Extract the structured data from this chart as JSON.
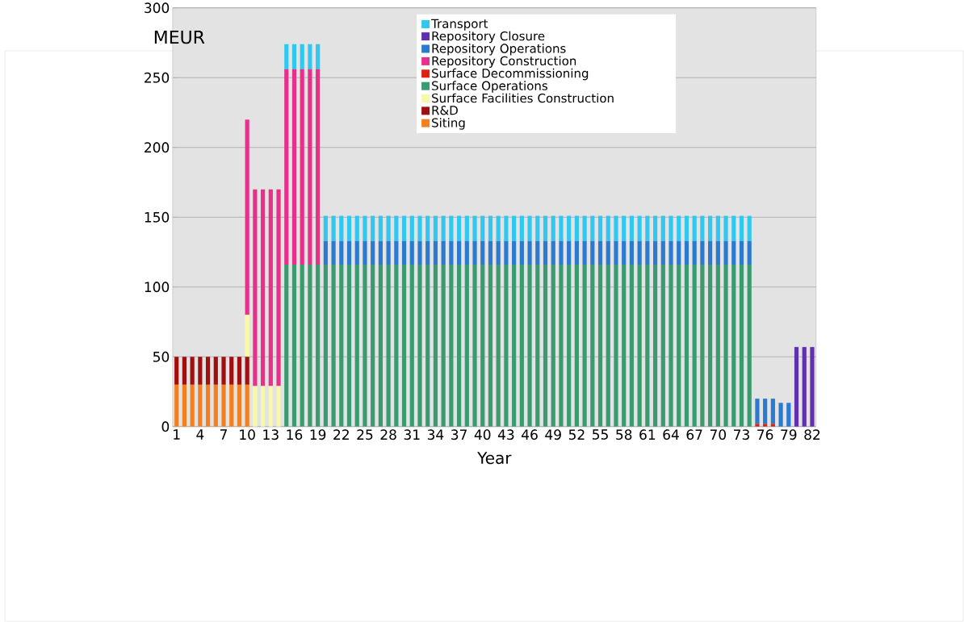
{
  "chart_data": {
    "type": "bar",
    "stacked": true,
    "xlabel": "Year",
    "ylabel": "MEUR",
    "categories": [
      "1",
      null,
      null,
      "4",
      null,
      null,
      "7",
      null,
      null,
      "10",
      null,
      null,
      "13",
      null,
      null,
      "16",
      null,
      null,
      "19",
      null,
      null,
      "22",
      null,
      null,
      "25",
      null,
      null,
      "28",
      null,
      null,
      "31",
      null,
      null,
      "34",
      null,
      null,
      "37",
      null,
      null,
      "40",
      null,
      null,
      "43",
      null,
      null,
      "46",
      null,
      null,
      "49",
      null,
      null,
      "52",
      null,
      null,
      "55",
      null,
      null,
      "58",
      null,
      null,
      "61",
      null,
      null,
      "64",
      null,
      null,
      "67",
      null,
      null,
      "70",
      null,
      null,
      "73",
      null,
      null,
      "76",
      null,
      null,
      "79",
      null,
      null,
      "82"
    ],
    "ylim": [
      0,
      300
    ],
    "yticks": [
      0,
      50,
      100,
      150,
      200,
      250,
      300
    ],
    "grid": "y",
    "legend": "top",
    "series": [
      {
        "name": "Siting",
        "color": "#f28020",
        "values": [
          30,
          30,
          30,
          30,
          30,
          30,
          30,
          30,
          30,
          30,
          null,
          null,
          null,
          null,
          null,
          null,
          null,
          null,
          null,
          null,
          null,
          null,
          null,
          null,
          null,
          null,
          null,
          null,
          null,
          null,
          null,
          null,
          null,
          null,
          null,
          null,
          null,
          null,
          null,
          null,
          null,
          null,
          null,
          null,
          null,
          null,
          null,
          null,
          null,
          null,
          null,
          null,
          null,
          null,
          null,
          null,
          null,
          null,
          null,
          null,
          null,
          null,
          null,
          null,
          null,
          null,
          null,
          null,
          null,
          null,
          null,
          null,
          null,
          null,
          null,
          null,
          null,
          null,
          null,
          null,
          null,
          null
        ]
      },
      {
        "name": "R&D",
        "color": "#a01010",
        "values": [
          20,
          20,
          20,
          20,
          20,
          20,
          20,
          20,
          20,
          20,
          null,
          null,
          null,
          null,
          null,
          null,
          null,
          null,
          null,
          null,
          null,
          null,
          null,
          null,
          null,
          null,
          null,
          null,
          null,
          null,
          null,
          null,
          null,
          null,
          null,
          null,
          null,
          null,
          null,
          null,
          null,
          null,
          null,
          null,
          null,
          null,
          null,
          null,
          null,
          null,
          null,
          null,
          null,
          null,
          null,
          null,
          null,
          null,
          null,
          null,
          null,
          null,
          null,
          null,
          null,
          null,
          null,
          null,
          null,
          null,
          null,
          null,
          null,
          null,
          null,
          null,
          null,
          null,
          null,
          null,
          null,
          null
        ]
      },
      {
        "name": "Surface Facilities Construction",
        "color": "#f8f8a8",
        "values": [
          null,
          null,
          null,
          null,
          null,
          null,
          null,
          null,
          null,
          30,
          29,
          29,
          29,
          29,
          null,
          null,
          null,
          null,
          null,
          null,
          null,
          null,
          null,
          null,
          null,
          null,
          null,
          null,
          null,
          null,
          null,
          null,
          null,
          null,
          null,
          null,
          null,
          null,
          null,
          null,
          null,
          null,
          null,
          null,
          null,
          null,
          null,
          null,
          null,
          null,
          null,
          null,
          null,
          null,
          null,
          null,
          null,
          null,
          null,
          null,
          null,
          null,
          null,
          null,
          null,
          null,
          null,
          null,
          null,
          null,
          null,
          null,
          null,
          null,
          null,
          null,
          null,
          null,
          null,
          null,
          null,
          null
        ]
      },
      {
        "name": "Surface Operations",
        "color": "#3a9a70",
        "values": [
          null,
          null,
          null,
          null,
          null,
          null,
          null,
          null,
          null,
          null,
          null,
          null,
          null,
          null,
          116,
          116,
          116,
          116,
          116,
          116,
          116,
          116,
          116,
          116,
          116,
          116,
          116,
          116,
          116,
          116,
          116,
          116,
          116,
          116,
          116,
          116,
          116,
          116,
          116,
          116,
          116,
          116,
          116,
          116,
          116,
          116,
          116,
          116,
          116,
          116,
          116,
          116,
          116,
          116,
          116,
          116,
          116,
          116,
          116,
          116,
          116,
          116,
          116,
          116,
          116,
          116,
          116,
          116,
          116,
          116,
          116,
          116,
          116,
          116,
          null,
          null,
          null,
          null,
          null,
          null,
          null,
          null
        ]
      },
      {
        "name": "Surface Decommissioning",
        "color": "#e02010",
        "values": [
          null,
          null,
          null,
          null,
          null,
          null,
          null,
          null,
          null,
          null,
          null,
          null,
          null,
          null,
          null,
          null,
          null,
          null,
          null,
          null,
          null,
          null,
          null,
          null,
          null,
          null,
          null,
          null,
          null,
          null,
          null,
          null,
          null,
          null,
          null,
          null,
          null,
          null,
          null,
          null,
          null,
          null,
          null,
          null,
          null,
          null,
          null,
          null,
          null,
          null,
          null,
          null,
          null,
          null,
          null,
          null,
          null,
          null,
          null,
          null,
          null,
          null,
          null,
          null,
          null,
          null,
          null,
          null,
          null,
          null,
          null,
          null,
          null,
          null,
          2,
          2,
          2,
          null,
          null,
          null,
          null,
          null
        ]
      },
      {
        "name": "Repository Construction",
        "color": "#e8308a",
        "values": [
          null,
          null,
          null,
          null,
          null,
          null,
          null,
          null,
          null,
          140,
          141,
          141,
          141,
          141,
          140,
          140,
          140,
          140,
          140,
          null,
          null,
          null,
          null,
          null,
          null,
          null,
          null,
          null,
          null,
          null,
          null,
          null,
          null,
          null,
          null,
          null,
          null,
          null,
          null,
          null,
          null,
          null,
          null,
          null,
          null,
          null,
          null,
          null,
          null,
          null,
          null,
          null,
          null,
          null,
          null,
          null,
          null,
          null,
          null,
          null,
          null,
          null,
          null,
          null,
          null,
          null,
          null,
          null,
          null,
          null,
          null,
          null,
          null,
          null,
          null,
          null,
          null,
          null,
          null,
          null,
          null,
          null
        ]
      },
      {
        "name": "Repository Operations",
        "color": "#2a7ad0",
        "values": [
          null,
          null,
          null,
          null,
          null,
          null,
          null,
          null,
          null,
          null,
          null,
          null,
          null,
          null,
          null,
          null,
          null,
          null,
          null,
          17,
          17,
          17,
          17,
          17,
          17,
          17,
          17,
          17,
          17,
          17,
          17,
          17,
          17,
          17,
          17,
          17,
          17,
          17,
          17,
          17,
          17,
          17,
          17,
          17,
          17,
          17,
          17,
          17,
          17,
          17,
          17,
          17,
          17,
          17,
          17,
          17,
          17,
          17,
          17,
          17,
          17,
          17,
          17,
          17,
          17,
          17,
          17,
          17,
          17,
          17,
          17,
          17,
          17,
          17,
          18,
          18,
          18,
          17,
          17,
          null,
          null,
          null
        ]
      },
      {
        "name": "Repository Closure",
        "color": "#6030b0",
        "values": [
          null,
          null,
          null,
          null,
          null,
          null,
          null,
          null,
          null,
          null,
          null,
          null,
          null,
          null,
          null,
          null,
          null,
          null,
          null,
          null,
          null,
          null,
          null,
          null,
          null,
          null,
          null,
          null,
          null,
          null,
          null,
          null,
          null,
          null,
          null,
          null,
          null,
          null,
          null,
          null,
          null,
          null,
          null,
          null,
          null,
          null,
          null,
          null,
          null,
          null,
          null,
          null,
          null,
          null,
          null,
          null,
          null,
          null,
          null,
          null,
          null,
          null,
          null,
          null,
          null,
          null,
          null,
          null,
          null,
          null,
          null,
          null,
          null,
          null,
          null,
          null,
          null,
          null,
          null,
          57,
          57,
          57
        ]
      },
      {
        "name": "Transport",
        "color": "#30c8f0",
        "values": [
          null,
          null,
          null,
          null,
          null,
          null,
          null,
          null,
          null,
          null,
          null,
          null,
          null,
          null,
          18,
          18,
          18,
          18,
          18,
          18,
          18,
          18,
          18,
          18,
          18,
          18,
          18,
          18,
          18,
          18,
          18,
          18,
          18,
          18,
          18,
          18,
          18,
          18,
          18,
          18,
          18,
          18,
          18,
          18,
          18,
          18,
          18,
          18,
          18,
          18,
          18,
          18,
          18,
          18,
          18,
          18,
          18,
          18,
          18,
          18,
          18,
          18,
          18,
          18,
          18,
          18,
          18,
          18,
          18,
          18,
          18,
          18,
          18,
          18,
          null,
          null,
          null,
          null,
          null,
          null,
          null,
          null
        ]
      }
    ]
  }
}
